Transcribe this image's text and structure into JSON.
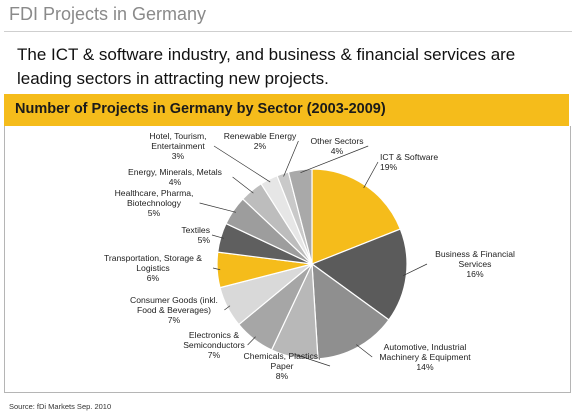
{
  "page": {
    "title": "FDI Projects in Germany",
    "subtitle": "The ICT & software industry, and business & financial services are leading sectors in attracting new projects.",
    "source": "Source: fDi Markets Sep. 2010"
  },
  "colors": {
    "yellow": "#f5bc1b",
    "dark_gray": "#5b5b5b",
    "mid_gray": "#8f8f8f",
    "light_gray": "#b8b8b8",
    "lighter_gray": "#d2d2d2",
    "lightest_gray": "#e6e6e6"
  },
  "chart_data": {
    "type": "pie",
    "title": "Number of Projects in Germany by Sector (2003-2009)",
    "slices": [
      {
        "label": [
          "ICT & Software"
        ],
        "value": 19,
        "pct": "19%",
        "color": "#f5bc1b"
      },
      {
        "label": [
          "Business & Financial",
          "Services"
        ],
        "value": 16,
        "pct": "16%",
        "color": "#5b5b5b"
      },
      {
        "label": [
          "Automotive, Industrial",
          "Machinery & Equipment"
        ],
        "value": 14,
        "pct": "14%",
        "color": "#8f8f8f"
      },
      {
        "label": [
          "Chemicals, Plastics,",
          "Paper"
        ],
        "value": 8,
        "pct": "8%",
        "color": "#b8b8b8"
      },
      {
        "label": [
          "Electronics &",
          "Semiconductors"
        ],
        "value": 7,
        "pct": "7%",
        "color": "#a6a6a6"
      },
      {
        "label": [
          "Consumer Goods (inkl.",
          "Food & Beverages)"
        ],
        "value": 7,
        "pct": "7%",
        "color": "#d9d9d9"
      },
      {
        "label": [
          "Transportation, Storage &",
          "Logistics"
        ],
        "value": 6,
        "pct": "6%",
        "color": "#f5bc1b"
      },
      {
        "label": [
          "Textiles"
        ],
        "value": 5,
        "pct": "5%",
        "color": "#5f5f5f"
      },
      {
        "label": [
          "Healthcare, Pharma,",
          "Biotechnology"
        ],
        "value": 5,
        "pct": "5%",
        "color": "#9d9d9d"
      },
      {
        "label": [
          "Energy, Minerals, Metals"
        ],
        "value": 4,
        "pct": "4%",
        "color": "#bdbdbd"
      },
      {
        "label": [
          "Hotel, Tourism,",
          "Entertainment"
        ],
        "value": 3,
        "pct": "3%",
        "color": "#e6e6e6"
      },
      {
        "label": [
          "Renewable Energy"
        ],
        "value": 2,
        "pct": "2%",
        "color": "#c9c9c9"
      },
      {
        "label": [
          "Other Sectors"
        ],
        "value": 4,
        "pct": "4%",
        "color": "#a9a9a9"
      }
    ]
  }
}
